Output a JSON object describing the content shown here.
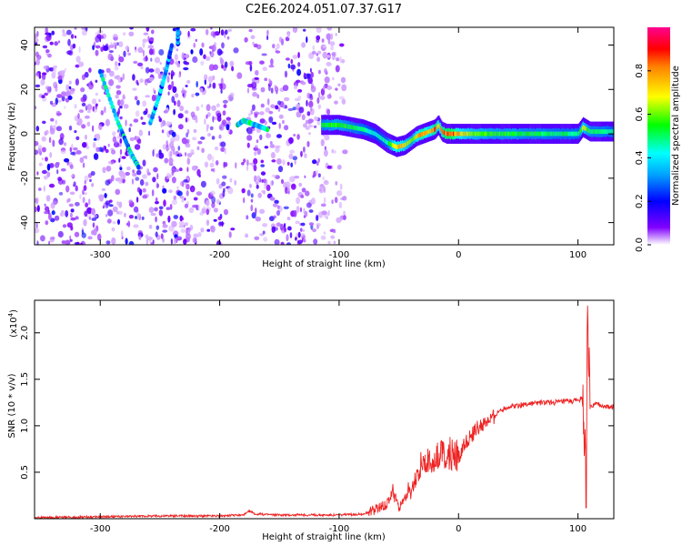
{
  "title": "C2E6.2024.051.07.37.G17",
  "chart_data": [
    {
      "type": "heatmap",
      "xlabel": "Height of straight line (km)",
      "ylabel": "Frequency (Hz)",
      "xlim": [
        -355,
        130
      ],
      "ylim": [
        -50,
        48
      ],
      "xticks": [
        -300,
        -200,
        -100,
        0,
        100
      ],
      "yticks": [
        -40,
        -20,
        0,
        20,
        40
      ],
      "colorbar": {
        "label": "Normalized spectral amplitude",
        "range": [
          0.0,
          1.0
        ],
        "ticks": [
          0.0,
          0.2,
          0.4,
          0.6,
          0.8
        ],
        "colormap": [
          "#ffffff",
          "#7f00ff",
          "#0000ff",
          "#00ffff",
          "#00ff00",
          "#ffff00",
          "#ff0000",
          "#ff00a0"
        ]
      },
      "ridge": {
        "x": [
          -115,
          -100,
          -90,
          -80,
          -70,
          -60,
          -52,
          -45,
          -40,
          -35,
          -30,
          -25,
          -20,
          -17,
          -14,
          -10,
          -5,
          0,
          20,
          60,
          100,
          104,
          110,
          130
        ],
        "y": [
          4,
          4,
          3,
          2,
          0,
          -4,
          -6,
          -5,
          -3,
          -1,
          0,
          1,
          2,
          4,
          1,
          0,
          0,
          0,
          0,
          0,
          0,
          3,
          1,
          1
        ],
        "amplitude": [
          0.55,
          0.6,
          0.55,
          0.5,
          0.45,
          0.5,
          0.8,
          0.7,
          0.6,
          0.75,
          0.85,
          0.7,
          0.9,
          0.7,
          0.85,
          0.92,
          0.9,
          0.75,
          0.6,
          0.55,
          0.5,
          0.7,
          0.55,
          0.5
        ]
      },
      "streaks": [
        {
          "x": [
            -300,
            -285,
            -275,
            -268
          ],
          "y": [
            28,
            5,
            -8,
            -15
          ],
          "amplitude": 0.45
        },
        {
          "x": [
            -258,
            -250,
            -245,
            -240,
            -235
          ],
          "y": [
            5,
            18,
            28,
            40,
            48
          ],
          "amplitude": 0.4
        },
        {
          "x": [
            -185,
            -180,
            -175,
            -160
          ],
          "y": [
            4,
            6,
            5,
            2
          ],
          "amplitude": 0.5
        }
      ]
    },
    {
      "type": "line",
      "xlabel": "Height of straight line (km)",
      "ylabel": "SNR (10 * v/v)",
      "scale_label": "(x10",
      "scale_exp": "4",
      "xlim": [
        -355,
        130
      ],
      "ylim": [
        0,
        2.35
      ],
      "xticks": [
        -300,
        -200,
        -100,
        0,
        100
      ],
      "yticks": [
        0.5,
        1.0,
        1.5,
        2.0
      ],
      "series": [
        {
          "color": "#ee2222",
          "x": [
            -355,
            -300,
            -250,
            -200,
            -180,
            -175,
            -170,
            -150,
            -120,
            -100,
            -80,
            -70,
            -60,
            -55,
            -50,
            -45,
            -42,
            -40,
            -35,
            -30,
            -25,
            -20,
            -15,
            -10,
            -5,
            0,
            5,
            10,
            15,
            20,
            25,
            30,
            35,
            40,
            50,
            60,
            70,
            80,
            90,
            100,
            103,
            105,
            106,
            107,
            108,
            109,
            110,
            115,
            120,
            125,
            130
          ],
          "y": [
            0.01,
            0.02,
            0.03,
            0.03,
            0.04,
            0.08,
            0.05,
            0.04,
            0.04,
            0.04,
            0.05,
            0.1,
            0.15,
            0.3,
            0.12,
            0.2,
            0.35,
            0.25,
            0.5,
            0.65,
            0.6,
            0.6,
            0.75,
            0.6,
            0.75,
            0.65,
            0.8,
            0.88,
            0.97,
            1.0,
            1.05,
            1.1,
            1.17,
            1.2,
            1.22,
            1.24,
            1.25,
            1.25,
            1.26,
            1.27,
            1.3,
            1.1,
            0.6,
            0.1,
            2.35,
            1.8,
            1.2,
            1.23,
            1.22,
            1.2,
            1.2
          ]
        }
      ]
    }
  ]
}
